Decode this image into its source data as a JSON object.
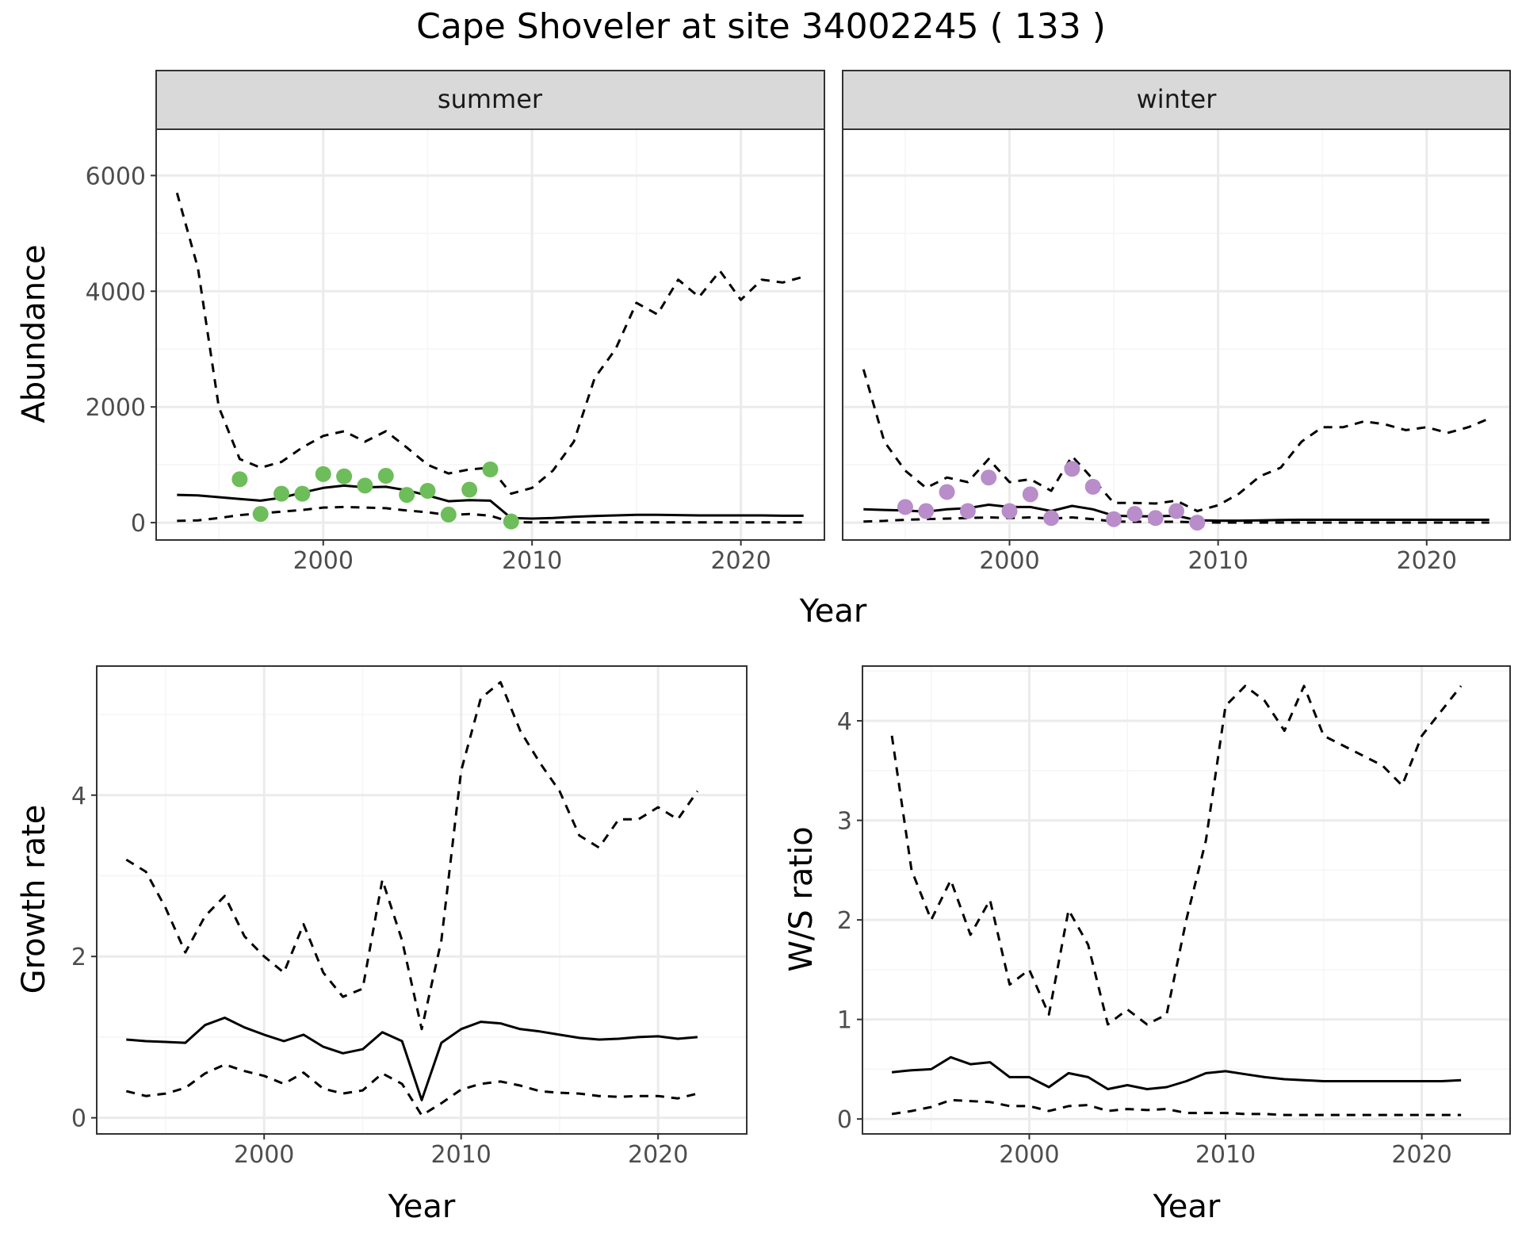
{
  "title": "Cape Shoveler at site 34002245 ( 133 )",
  "colors": {
    "summer_points": "#6dbd5a",
    "winter_points": "#b88dc9",
    "line": "#000000",
    "strip_fill": "#d9d9d9",
    "grid_major": "#ebebeb",
    "grid_minor": "#f5f5f5"
  },
  "chart_data": [
    {
      "type": "line",
      "facet": "summer",
      "xlabel": "Year",
      "ylabel": "Abundance",
      "xlim": [
        1992,
        2024
      ],
      "ylim": [
        -300,
        6800
      ],
      "xticks": [
        2000,
        2010,
        2020
      ],
      "yticks": [
        0,
        2000,
        4000,
        6000
      ],
      "grid": true,
      "x": [
        1993,
        1994,
        1995,
        1996,
        1997,
        1998,
        1999,
        2000,
        2001,
        2002,
        2003,
        2004,
        2005,
        2006,
        2007,
        2008,
        2009,
        2010,
        2011,
        2012,
        2013,
        2014,
        2015,
        2016,
        2017,
        2018,
        2019,
        2020,
        2021,
        2022,
        2023
      ],
      "series": [
        {
          "style": "solid",
          "values": [
            480,
            470,
            440,
            410,
            380,
            430,
            520,
            600,
            640,
            610,
            620,
            560,
            470,
            370,
            390,
            380,
            80,
            70,
            80,
            100,
            115,
            125,
            135,
            135,
            130,
            125,
            125,
            125,
            125,
            120,
            120
          ]
        },
        {
          "style": "dashed",
          "values": [
            5700,
            4400,
            2000,
            1100,
            950,
            1050,
            1300,
            1500,
            1580,
            1400,
            1580,
            1300,
            1000,
            850,
            920,
            950,
            500,
            600,
            900,
            1400,
            2500,
            3000,
            3800,
            3600,
            4200,
            3900,
            4350,
            3850,
            4200,
            4150,
            4250
          ]
        },
        {
          "style": "dashed",
          "values": [
            30,
            40,
            80,
            130,
            160,
            190,
            220,
            260,
            270,
            260,
            250,
            210,
            180,
            130,
            150,
            120,
            10,
            5,
            5,
            5,
            5,
            5,
            5,
            5,
            5,
            5,
            5,
            5,
            5,
            5,
            5
          ]
        }
      ],
      "points": {
        "x": [
          1996,
          1997,
          1998,
          1999,
          2000,
          2001,
          2002,
          2003,
          2004,
          2005,
          2006,
          2007,
          2008,
          2009
        ],
        "y": [
          750,
          150,
          500,
          500,
          840,
          800,
          640,
          810,
          480,
          550,
          140,
          570,
          920,
          20
        ]
      }
    },
    {
      "type": "line",
      "facet": "winter",
      "xlabel": "Year",
      "ylabel": "Abundance",
      "xlim": [
        1992,
        2024
      ],
      "ylim": [
        -300,
        6800
      ],
      "xticks": [
        2000,
        2010,
        2020
      ],
      "yticks": [
        0,
        2000,
        4000,
        6000
      ],
      "grid": true,
      "x": [
        1993,
        1994,
        1995,
        1996,
        1997,
        1998,
        1999,
        2000,
        2001,
        2002,
        2003,
        2004,
        2005,
        2006,
        2007,
        2008,
        2009,
        2010,
        2011,
        2012,
        2013,
        2014,
        2015,
        2016,
        2017,
        2018,
        2019,
        2020,
        2021,
        2022,
        2023
      ],
      "series": [
        {
          "style": "solid",
          "values": [
            230,
            220,
            210,
            190,
            230,
            250,
            310,
            270,
            270,
            200,
            290,
            230,
            120,
            110,
            110,
            120,
            40,
            35,
            35,
            40,
            45,
            50,
            50,
            50,
            50,
            50,
            50,
            50,
            50,
            50,
            50
          ]
        },
        {
          "style": "dashed",
          "values": [
            2650,
            1400,
            900,
            600,
            780,
            700,
            1100,
            700,
            750,
            550,
            1150,
            750,
            340,
            340,
            330,
            380,
            200,
            300,
            500,
            800,
            950,
            1400,
            1650,
            1650,
            1750,
            1700,
            1600,
            1650,
            1550,
            1650,
            1800
          ]
        },
        {
          "style": "dashed",
          "values": [
            20,
            30,
            50,
            60,
            70,
            80,
            90,
            80,
            90,
            70,
            90,
            60,
            20,
            15,
            15,
            15,
            5,
            2,
            2,
            2,
            2,
            2,
            2,
            2,
            2,
            2,
            2,
            2,
            2,
            2,
            2
          ]
        }
      ],
      "points": {
        "x": [
          1995,
          1996,
          1997,
          1998,
          1999,
          2000,
          2001,
          2002,
          2003,
          2004,
          2005,
          2006,
          2007,
          2008,
          2009
        ],
        "y": [
          270,
          200,
          530,
          200,
          780,
          200,
          490,
          80,
          930,
          620,
          60,
          150,
          80,
          200,
          0
        ]
      }
    },
    {
      "type": "line",
      "xlabel": "Year",
      "ylabel": "Growth rate",
      "xlim": [
        1991.5,
        2024.5
      ],
      "ylim": [
        -0.2,
        5.6
      ],
      "xticks": [
        2000,
        2010,
        2020
      ],
      "yticks": [
        0,
        2,
        4
      ],
      "grid": true,
      "x": [
        1993,
        1994,
        1995,
        1996,
        1997,
        1998,
        1999,
        2000,
        2001,
        2002,
        2003,
        2004,
        2005,
        2006,
        2007,
        2008,
        2009,
        2010,
        2011,
        2012,
        2013,
        2014,
        2015,
        2016,
        2017,
        2018,
        2019,
        2020,
        2021,
        2022
      ],
      "series": [
        {
          "style": "solid",
          "values": [
            0.97,
            0.95,
            0.94,
            0.93,
            1.15,
            1.24,
            1.12,
            1.03,
            0.95,
            1.03,
            0.88,
            0.8,
            0.85,
            1.06,
            0.95,
            0.22,
            0.93,
            1.1,
            1.19,
            1.17,
            1.1,
            1.07,
            1.03,
            0.99,
            0.97,
            0.98,
            1.0,
            1.01,
            0.98,
            1.0
          ]
        },
        {
          "style": "dashed",
          "values": [
            3.2,
            3.05,
            2.6,
            2.05,
            2.5,
            2.75,
            2.25,
            2.0,
            1.8,
            2.4,
            1.8,
            1.5,
            1.6,
            2.95,
            2.2,
            1.1,
            2.2,
            4.3,
            5.2,
            5.4,
            4.8,
            4.4,
            4.05,
            3.5,
            3.35,
            3.7,
            3.7,
            3.85,
            3.7,
            4.05
          ]
        },
        {
          "style": "dashed",
          "values": [
            0.33,
            0.27,
            0.3,
            0.37,
            0.55,
            0.66,
            0.58,
            0.52,
            0.42,
            0.56,
            0.36,
            0.3,
            0.34,
            0.55,
            0.42,
            0.03,
            0.18,
            0.35,
            0.42,
            0.45,
            0.4,
            0.33,
            0.31,
            0.3,
            0.27,
            0.26,
            0.27,
            0.27,
            0.24,
            0.3
          ]
        }
      ]
    },
    {
      "type": "line",
      "xlabel": "Year",
      "ylabel": "W/S ratio",
      "xlim": [
        1991.5,
        2024.5
      ],
      "ylim": [
        -0.15,
        4.55
      ],
      "xticks": [
        2000,
        2010,
        2020
      ],
      "yticks": [
        0,
        1,
        2,
        3,
        4
      ],
      "grid": true,
      "x": [
        1993,
        1994,
        1995,
        1996,
        1997,
        1998,
        1999,
        2000,
        2001,
        2002,
        2003,
        2004,
        2005,
        2006,
        2007,
        2008,
        2009,
        2010,
        2011,
        2012,
        2013,
        2014,
        2015,
        2016,
        2017,
        2018,
        2019,
        2020,
        2021,
        2022
      ],
      "series": [
        {
          "style": "solid",
          "values": [
            0.47,
            0.49,
            0.5,
            0.62,
            0.55,
            0.57,
            0.42,
            0.42,
            0.32,
            0.46,
            0.42,
            0.3,
            0.34,
            0.3,
            0.32,
            0.38,
            0.46,
            0.48,
            0.45,
            0.42,
            0.4,
            0.39,
            0.38,
            0.38,
            0.38,
            0.38,
            0.38,
            0.38,
            0.38,
            0.39
          ]
        },
        {
          "style": "dashed",
          "values": [
            3.85,
            2.5,
            2.0,
            2.4,
            1.85,
            2.2,
            1.35,
            1.5,
            1.05,
            2.1,
            1.75,
            0.95,
            1.1,
            0.95,
            1.05,
            2.0,
            2.8,
            4.15,
            4.35,
            4.2,
            3.9,
            4.35,
            3.85,
            3.75,
            3.65,
            3.55,
            3.35,
            3.85,
            4.1,
            4.35
          ]
        },
        {
          "style": "dashed",
          "values": [
            0.05,
            0.08,
            0.12,
            0.19,
            0.18,
            0.17,
            0.13,
            0.13,
            0.08,
            0.13,
            0.14,
            0.08,
            0.1,
            0.09,
            0.1,
            0.06,
            0.06,
            0.06,
            0.05,
            0.05,
            0.04,
            0.04,
            0.04,
            0.04,
            0.04,
            0.04,
            0.04,
            0.04,
            0.04,
            0.04
          ]
        }
      ]
    }
  ]
}
